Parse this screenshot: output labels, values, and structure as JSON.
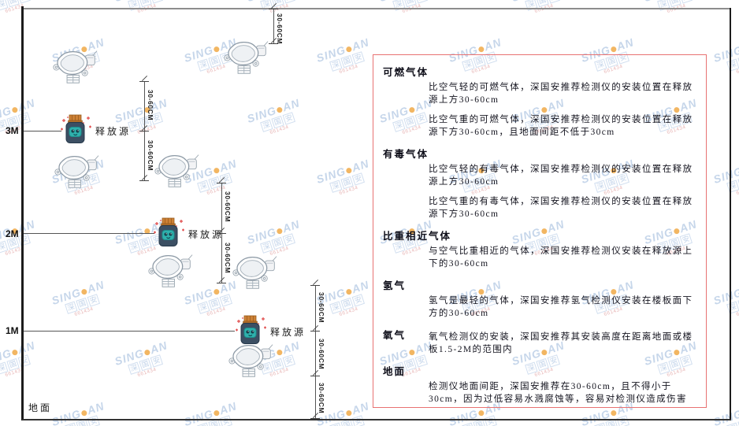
{
  "watermark": {
    "brand_left": "SING",
    "brand_right": "AN",
    "company_chars": [
      "深",
      "国",
      "安"
    ],
    "code": "661434",
    "dot_color": "#f0a43c",
    "text_color": "#b9cde6"
  },
  "diagram": {
    "levels": [
      "3M",
      "2M",
      "1M"
    ],
    "ground_label": "地面",
    "release_source_label": "释放源",
    "dim_label": "30-60CM"
  },
  "panel": {
    "border_color": "#e87272",
    "sections": [
      {
        "heading": "可燃气体",
        "inline": false,
        "paras": [
          "比空气轻的可燃气体，深国安推荐检测仪的安装位置在释放源上方30-60cm",
          "比空气重的可燃气体，深国安推荐检测仪的安装位置在释放源下方30-60cm，且地面间距不低于30cm"
        ]
      },
      {
        "heading": "有毒气体",
        "inline": false,
        "paras": [
          "比空气轻的有毒气体，深国安推荐检测仪的安装位置在释放源上方30-60cm",
          "比空气重的有毒气体，深国安推荐检测仪的安装位置在释放源下方30-60cm"
        ]
      },
      {
        "heading": "比重相近气体",
        "inline": false,
        "paras": [
          "与空气比重相近的气体，深国安推荐检测仪安装在释放源上下的30-60cm"
        ]
      },
      {
        "heading": "氢气",
        "inline": false,
        "paras": [
          "氢气是最轻的气体，深国安推荐氢气检测仪安装在楼板面下方的30-60cm"
        ]
      },
      {
        "heading": "氧气",
        "inline": true,
        "paras": [
          "氧气检测仪的安装，深国安推荐其安装高度在距离地面或楼板1.5-2M的范围内"
        ]
      },
      {
        "heading": "地面",
        "inline": false,
        "paras": [
          "检测仪地面间距，深国安推荐在30-60cm，且不得小于30cm，因为过低容易水溅腐蚀等，容易对检测仪造成伤害"
        ]
      }
    ]
  }
}
